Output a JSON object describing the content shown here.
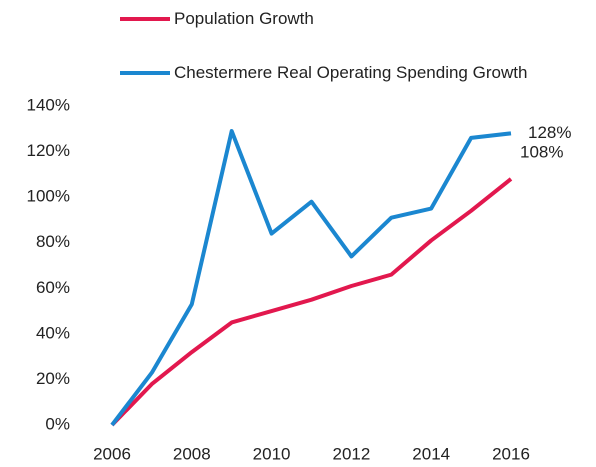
{
  "chart_data": {
    "type": "line",
    "x": [
      2006,
      2007,
      2008,
      2009,
      2010,
      2011,
      2012,
      2013,
      2014,
      2015,
      2016
    ],
    "series": [
      {
        "name": "Population Growth",
        "color": "#e2184e",
        "values": [
          0,
          18,
          32,
          45,
          50,
          55,
          61,
          66,
          81,
          94,
          108
        ],
        "value_labels": [
          null,
          null,
          null,
          null,
          null,
          null,
          null,
          null,
          null,
          null,
          "108%"
        ]
      },
      {
        "name": "Chestermere Real Operating Spending Growth",
        "color": "#1b87d0",
        "values": [
          0,
          23,
          53,
          129,
          84,
          98,
          74,
          91,
          95,
          126,
          128
        ],
        "value_labels": [
          null,
          null,
          null,
          null,
          null,
          null,
          null,
          null,
          null,
          null,
          "128%"
        ]
      }
    ],
    "xlim": [
      2006,
      2016
    ],
    "xticks": [
      2006,
      2008,
      2010,
      2012,
      2014,
      2016
    ],
    "ylim": [
      0,
      140
    ],
    "yticks": [
      {
        "value": 0,
        "label": "0%"
      },
      {
        "value": 20,
        "label": "20%"
      },
      {
        "value": 40,
        "label": "40%"
      },
      {
        "value": 60,
        "label": "60%"
      },
      {
        "value": 80,
        "label": "80%"
      },
      {
        "value": 100,
        "label": "100%"
      },
      {
        "value": 120,
        "label": "120%"
      },
      {
        "value": 140,
        "label": "140%"
      }
    ],
    "grid": false,
    "legend": "top"
  }
}
